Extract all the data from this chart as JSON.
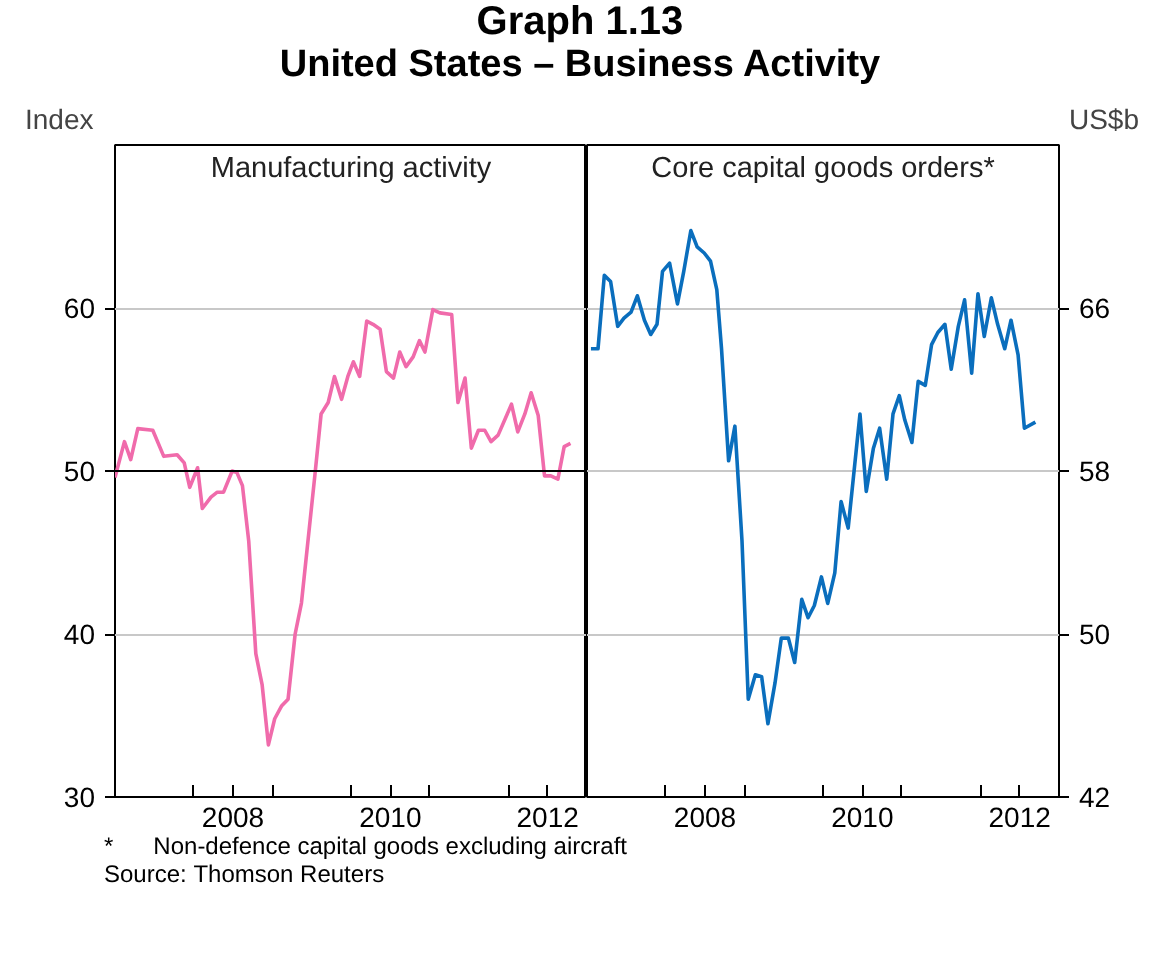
{
  "chart_data": [
    {
      "type": "line",
      "title": "Graph 1.13",
      "subtitle": "United States – Business Activity",
      "ylabel": "Index",
      "annotations": [
        "Manufacturing activity"
      ],
      "x": [
        2007.0,
        2007.12,
        2007.2,
        2007.29,
        2007.48,
        2007.62,
        2007.79,
        2007.88,
        2007.95,
        2008.05,
        2008.11,
        2008.22,
        2008.3,
        2008.38,
        2008.49,
        2008.55,
        2008.62,
        2008.7,
        2008.79,
        2008.87,
        2008.95,
        2009.03,
        2009.12,
        2009.2,
        2009.29,
        2009.37,
        2009.54,
        2009.62,
        2009.71,
        2009.79,
        2009.88,
        2009.96,
        2010.03,
        2010.11,
        2010.2,
        2010.28,
        2010.37,
        2010.45,
        2010.54,
        2010.62,
        2010.7,
        2010.79,
        2010.87,
        2010.94,
        2011.04,
        2011.13,
        2011.28,
        2011.36,
        2011.45,
        2011.53,
        2011.62,
        2011.7,
        2011.78,
        2011.87,
        2012.04,
        2012.12,
        2012.21,
        2012.29,
        2012.38,
        2012.46,
        2012.54,
        2012.63,
        2012.71,
        2012.79
      ],
      "series": [
        {
          "color": "#f06bab",
          "values": [
            49.6,
            51.8,
            50.7,
            52.6,
            52.5,
            50.9,
            51.0,
            50.5,
            49.0,
            50.2,
            47.7,
            48.4,
            48.7,
            48.7,
            50.0,
            49.9,
            49.1,
            45.7,
            38.8,
            36.9,
            33.2,
            34.8,
            35.6,
            36.0,
            40.0,
            41.9,
            49.7,
            53.5,
            54.2,
            55.8,
            54.4,
            55.8,
            56.7,
            55.8,
            59.2,
            59.0,
            58.7,
            56.1,
            55.7,
            57.3,
            56.4,
            57.0,
            58.0,
            57.3,
            59.9,
            59.7,
            59.6,
            54.2,
            55.7,
            51.4,
            52.5,
            52.5,
            51.8,
            52.2,
            54.1,
            52.4,
            53.5,
            54.8,
            53.4,
            49.7,
            49.7,
            49.5,
            51.5,
            51.7
          ]
        }
      ],
      "xlim": [
        2007,
        2013
      ],
      "xticks": [
        {
          "value": 2008,
          "label": null
        },
        {
          "value": 2008.5,
          "label": "2008"
        },
        {
          "value": 2009,
          "label": null
        },
        {
          "value": 2010,
          "label": null
        },
        {
          "value": 2010.5,
          "label": "2010"
        },
        {
          "value": 2011,
          "label": null
        },
        {
          "value": 2012,
          "label": null
        },
        {
          "value": 2012.5,
          "label": "2012"
        }
      ],
      "ylim": [
        30,
        70
      ],
      "yticks": [
        30,
        40,
        50,
        60
      ],
      "grid": "y",
      "ref_lines": [
        {
          "axis": "y",
          "value": 50,
          "color": "#000000"
        }
      ]
    },
    {
      "type": "line",
      "y2label": "US$b",
      "annotations": [
        "Core capital goods orders*",
        "*      Non-defence capital goods excluding aircraft",
        "Source: Thomson Reuters"
      ],
      "x": [
        2007.05,
        2007.14,
        2007.22,
        2007.3,
        2007.39,
        2007.47,
        2007.56,
        2007.64,
        2007.73,
        2007.81,
        2007.89,
        2007.96,
        2008.05,
        2008.15,
        2008.23,
        2008.32,
        2008.4,
        2008.49,
        2008.57,
        2008.65,
        2008.71,
        2008.8,
        2008.88,
        2008.97,
        2009.05,
        2009.14,
        2009.22,
        2009.3,
        2009.39,
        2009.47,
        2009.56,
        2009.64,
        2009.73,
        2009.81,
        2009.89,
        2009.98,
        2010.06,
        2010.15,
        2010.23,
        2010.32,
        2010.47,
        2010.55,
        2010.64,
        2010.72,
        2010.81,
        2010.89,
        2010.97,
        2011.04,
        2011.13,
        2011.21,
        2011.3,
        2011.38,
        2011.46,
        2011.55,
        2011.63,
        2011.72,
        2011.8,
        2011.89,
        2011.97,
        2012.05,
        2012.14,
        2012.22,
        2012.31,
        2012.39,
        2012.48,
        2012.56,
        2012.7
      ],
      "series": [
        {
          "color": "#0a6ebd",
          "axis": "y2",
          "values": [
            64.0,
            64.0,
            67.6,
            67.3,
            65.1,
            65.5,
            65.8,
            66.6,
            65.4,
            64.7,
            65.2,
            67.8,
            68.2,
            66.2,
            67.8,
            69.8,
            69.0,
            68.7,
            68.3,
            66.9,
            64.0,
            58.5,
            60.2,
            54.6,
            46.8,
            48.0,
            47.9,
            45.6,
            47.6,
            49.8,
            49.8,
            48.6,
            51.7,
            50.8,
            51.4,
            52.8,
            51.5,
            53.0,
            56.5,
            55.2,
            60.8,
            57.0,
            59.1,
            60.1,
            57.6,
            60.8,
            61.7,
            60.5,
            59.4,
            62.4,
            62.2,
            64.2,
            64.8,
            65.2,
            63.0,
            65.1,
            66.4,
            62.8,
            66.7,
            64.6,
            66.5,
            65.2,
            64.0,
            65.4,
            63.7,
            60.1,
            60.4
          ]
        }
      ],
      "xlim": [
        2007,
        2013
      ],
      "xticks": [
        {
          "value": 2008,
          "label": null
        },
        {
          "value": 2008.5,
          "label": "2008"
        },
        {
          "value": 2009,
          "label": null
        },
        {
          "value": 2010,
          "label": null
        },
        {
          "value": 2010.5,
          "label": "2010"
        },
        {
          "value": 2011,
          "label": null
        },
        {
          "value": 2012,
          "label": null
        },
        {
          "value": 2012.5,
          "label": "2012"
        }
      ],
      "y2lim": [
        42,
        74
      ],
      "y2ticks": [
        42,
        50,
        58,
        66
      ],
      "grid": "y"
    }
  ]
}
